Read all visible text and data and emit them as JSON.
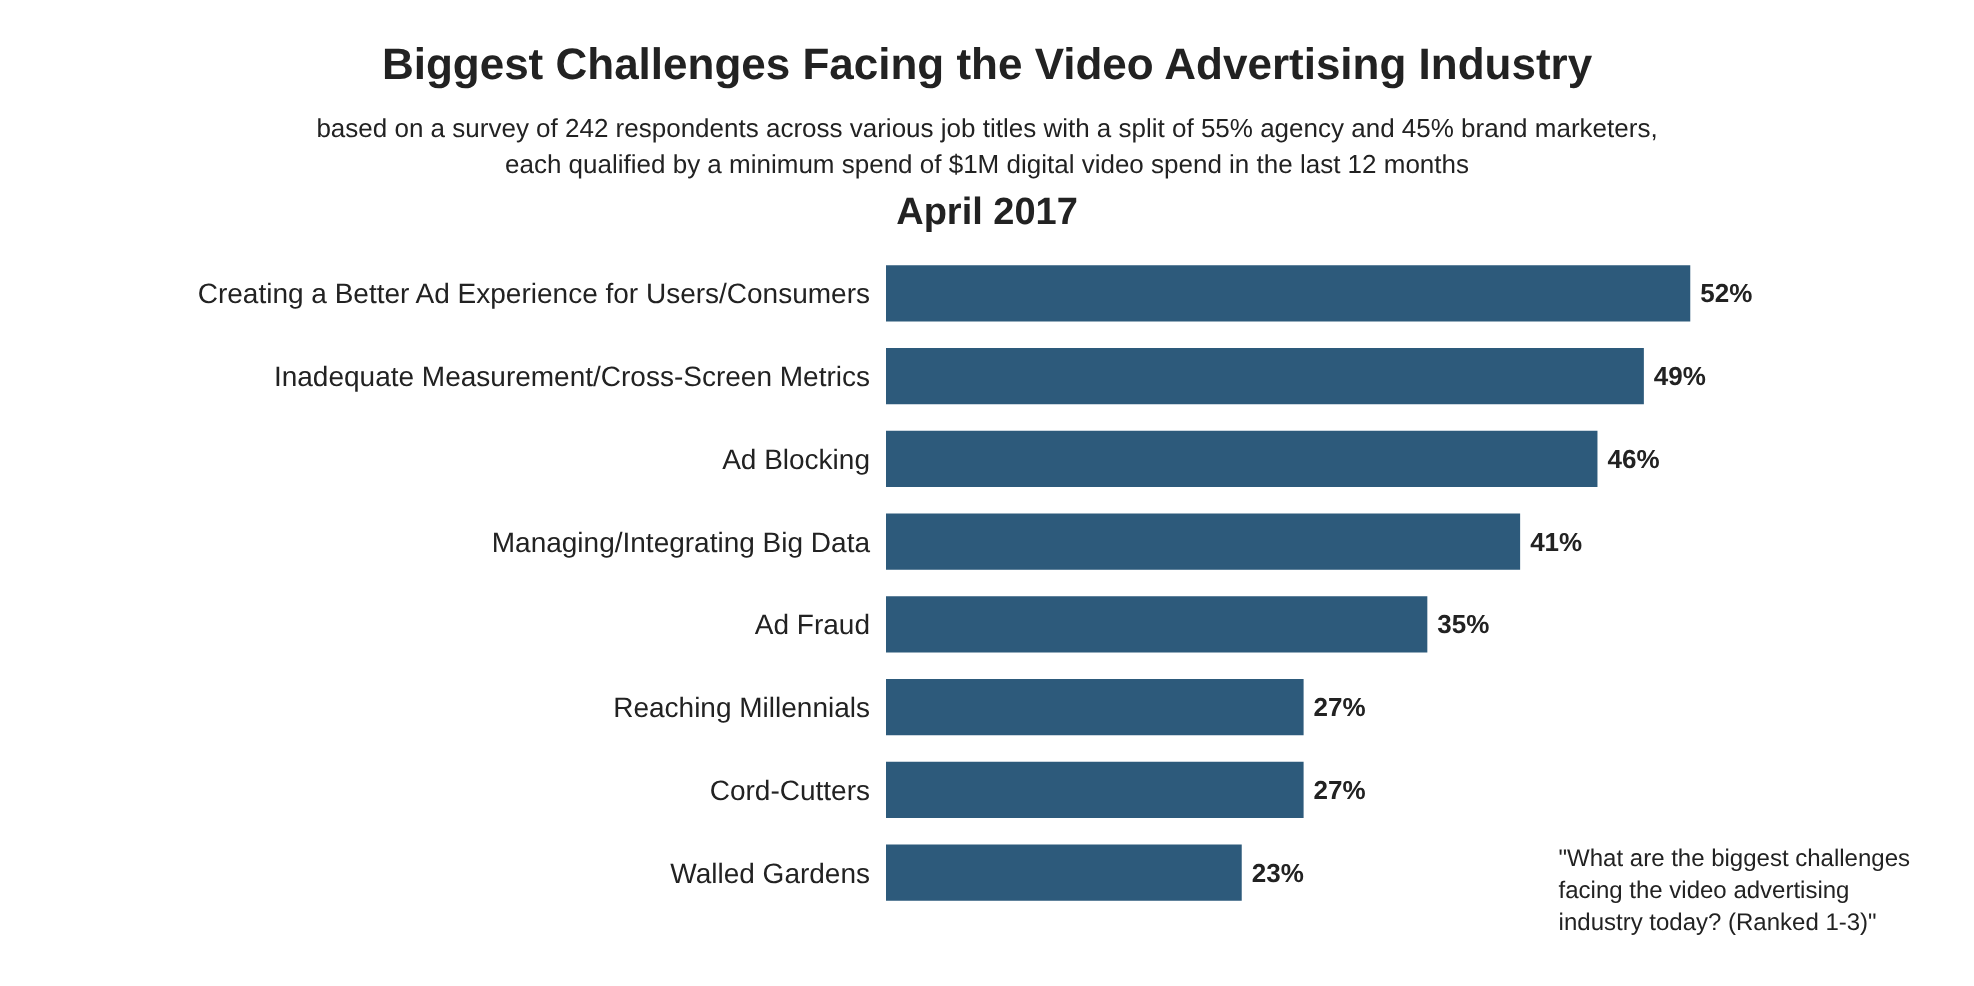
{
  "chart_data": {
    "type": "bar",
    "orientation": "horizontal",
    "title": "Biggest Challenges Facing the Video Advertising Industry",
    "subtitle": "based on a survey of 242 respondents across various job titles with a split of 55% agency and 45% brand marketers,\neach qualified by a minimum spend of $1M digital video spend in the last 12 months",
    "annotations": [
      "April 2017",
      "\"What are the biggest challenges\nfacing the video advertising\nindustry today? (Ranked 1-3)\""
    ],
    "categories": [
      "Creating a Better Ad Experience for Users/Consumers",
      "Inadequate Measurement/Cross-Screen Metrics",
      "Ad Blocking",
      "Managing/Integrating Big Data",
      "Ad Fraud",
      "Reaching Millennials",
      "Cord-Cutters",
      "Walled Gardens"
    ],
    "values": [
      52,
      49,
      46,
      41,
      35,
      27,
      27,
      23
    ],
    "value_labels": [
      "52%",
      "49%",
      "46%",
      "41%",
      "35%",
      "27%",
      "27%",
      "23%"
    ],
    "color": "#2d5a7b"
  }
}
